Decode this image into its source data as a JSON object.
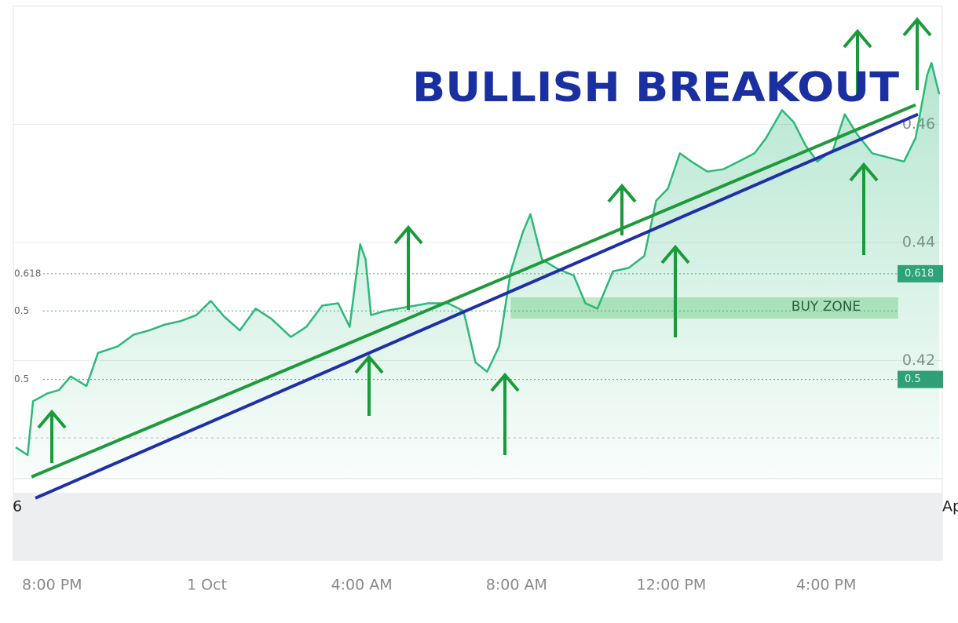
{
  "chart_data": {
    "type": "line",
    "title": "BULLISH BREAKOUT",
    "series": [
      {
        "color": "#2db87a",
        "x": [
          19.06,
          19.37,
          19.51,
          19.87,
          20.18,
          20.48,
          20.89,
          21.19,
          21.7,
          22.11,
          22.51,
          22.92,
          23.33,
          23.73,
          24.1,
          24.44,
          24.85,
          25.26,
          25.66,
          26.17,
          26.57,
          26.98,
          27.39,
          27.69,
          27.96,
          28.1,
          28.24,
          28.6,
          29.21,
          29.72,
          30.23,
          30.63,
          30.94,
          31.24,
          31.55,
          31.85,
          32.16,
          32.36,
          32.66,
          33.07,
          33.48,
          33.78,
          34.09,
          34.49,
          34.9,
          35.3,
          35.61,
          35.91,
          36.22,
          36.52,
          36.93,
          37.34,
          37.74,
          38.15,
          38.45,
          38.86,
          39.16,
          39.47,
          39.77,
          40.18,
          40.48,
          40.79,
          41.19,
          41.6,
          42.01,
          42.31,
          42.61,
          42.72,
          42.92
        ],
        "values": [
          0.4053,
          0.404,
          0.4131,
          0.4144,
          0.415,
          0.4173,
          0.4157,
          0.4213,
          0.4224,
          0.4244,
          0.4251,
          0.4261,
          0.4267,
          0.4277,
          0.4301,
          0.4275,
          0.4251,
          0.4288,
          0.4271,
          0.424,
          0.4257,
          0.4293,
          0.4297,
          0.4257,
          0.4397,
          0.4371,
          0.4277,
          0.4284,
          0.4291,
          0.4297,
          0.4297,
          0.4284,
          0.4197,
          0.4181,
          0.4224,
          0.4351,
          0.4417,
          0.4448,
          0.4371,
          0.4355,
          0.4344,
          0.4297,
          0.4288,
          0.4351,
          0.4357,
          0.4377,
          0.4471,
          0.4491,
          0.4551,
          0.4537,
          0.452,
          0.4524,
          0.4537,
          0.4551,
          0.4577,
          0.4624,
          0.4604,
          0.4564,
          0.4537,
          0.4557,
          0.4617,
          0.4584,
          0.4551,
          0.4544,
          0.4537,
          0.4577,
          0.4684,
          0.4704,
          0.4651
        ]
      }
    ],
    "trendlines": [
      {
        "color": "#1e9a3c",
        "x": [
          19.47,
          42.31
        ],
        "values": [
          0.4003,
          0.4633
        ]
      },
      {
        "color": "#1f2fa8",
        "x": [
          19.57,
          42.37
        ],
        "values": [
          0.3967,
          0.4617
        ]
      }
    ],
    "levels": [
      {
        "value": 0.4347,
        "label": "0.618"
      },
      {
        "value": 0.4284,
        "label": "0.5"
      },
      {
        "value": 0.4168,
        "label": "0.5"
      }
    ],
    "right_tags": [
      {
        "value": 0.4347,
        "label": "0.618"
      },
      {
        "value": 0.4168,
        "label": "0.5"
      }
    ],
    "baseline": 0.4069,
    "buy_zone": {
      "label": "BUY ZONE",
      "range": [
        0.4271,
        0.4307
      ],
      "x": [
        31.85,
        41.86
      ]
    },
    "edge_labels": [
      "6",
      "Ap"
    ],
    "xlim": [
      19,
      43
    ],
    "xticks": [
      {
        "value": 20,
        "label": "8:00 PM"
      },
      {
        "value": 24,
        "label": "1 Oct"
      },
      {
        "value": 28,
        "label": "4:00 AM"
      },
      {
        "value": 32,
        "label": "8:00 AM"
      },
      {
        "value": 36,
        "label": "12:00 PM"
      },
      {
        "value": 40,
        "label": "4:00 PM"
      }
    ],
    "ylim": [
      0.4,
      0.48
    ],
    "yticks": [
      0.42,
      0.44,
      0.46
    ],
    "grid": true
  }
}
